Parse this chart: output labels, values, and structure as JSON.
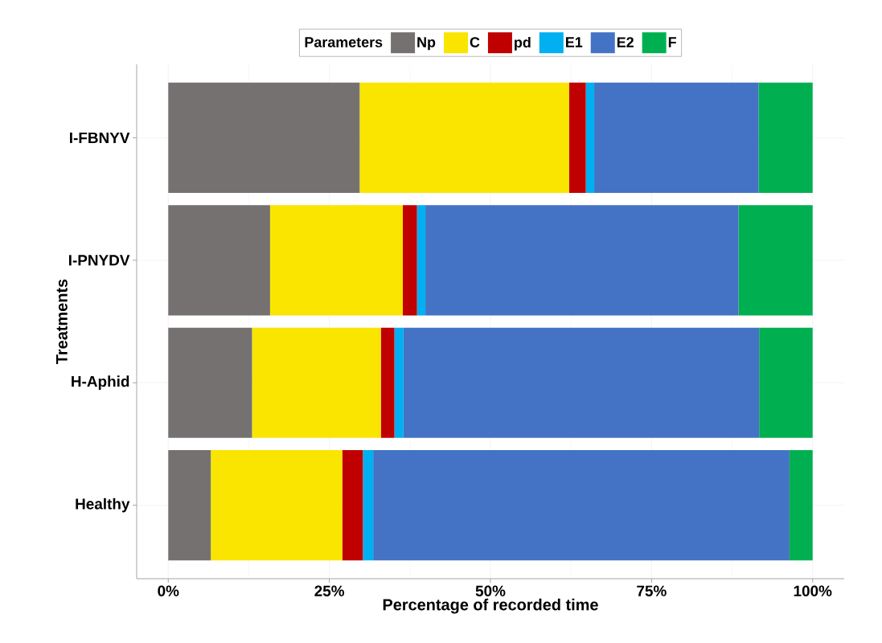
{
  "chart_data": {
    "type": "bar",
    "orientation": "horizontal",
    "stacked": true,
    "categories": [
      "I-FBNYV",
      "I-PNYDV",
      "H-Aphid",
      "Healthy"
    ],
    "xlabel": "Percentage of recorded time",
    "ylabel": "Treatments",
    "legend_title": "Parameters",
    "series": [
      {
        "name": "Np",
        "color": "#767171",
        "values": [
          29.7,
          15.8,
          13.0,
          6.6
        ]
      },
      {
        "name": "C",
        "color": "#fae500",
        "values": [
          32.5,
          20.6,
          20.0,
          20.4
        ]
      },
      {
        "name": "pd",
        "color": "#c00000",
        "values": [
          2.6,
          2.2,
          2.1,
          3.2
        ]
      },
      {
        "name": "E1",
        "color": "#00b0f0",
        "values": [
          1.3,
          1.3,
          1.4,
          1.6
        ]
      },
      {
        "name": "E2",
        "color": "#4472c4",
        "values": [
          25.5,
          48.6,
          55.2,
          64.6
        ]
      },
      {
        "name": "F",
        "color": "#00b050",
        "values": [
          8.4,
          11.5,
          8.3,
          3.6
        ]
      }
    ],
    "xlim": [
      -4.9,
      104.9
    ],
    "xticks": [
      {
        "value": 0,
        "label": "0%"
      },
      {
        "value": 25,
        "label": "25%"
      },
      {
        "value": 50,
        "label": "50%"
      },
      {
        "value": 75,
        "label": "75%"
      },
      {
        "value": 100,
        "label": "100%"
      }
    ],
    "grid": true,
    "legend": "top"
  }
}
